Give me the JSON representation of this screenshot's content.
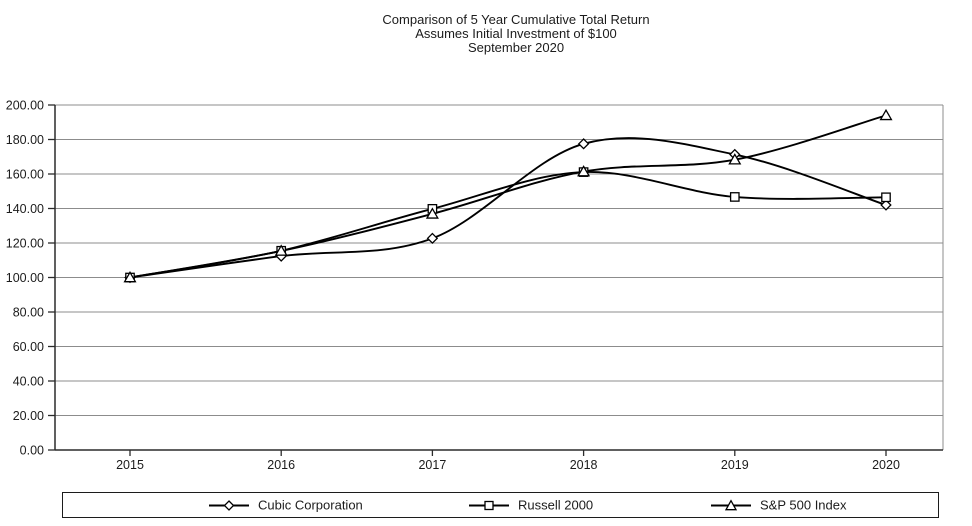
{
  "title": {
    "line1": "Comparison of 5 Year Cumulative Total Return",
    "line2": "Assumes Initial Investment of $100",
    "line3": "September 2020"
  },
  "chart_data": {
    "type": "line",
    "smoothed": true,
    "x_labels": [
      "2015",
      "2016",
      "2017",
      "2018",
      "2019",
      "2020"
    ],
    "series": [
      {
        "name": "Cubic Corporation",
        "marker": "diamond",
        "values": [
          100.0,
          112.4,
          122.7,
          177.5,
          171.3,
          142.0
        ]
      },
      {
        "name": "Russell 2000",
        "marker": "square",
        "values": [
          100.0,
          115.5,
          139.8,
          161.1,
          146.7,
          146.5
        ]
      },
      {
        "name": "S&P 500 Index",
        "marker": "triangle",
        "values": [
          100.0,
          115.4,
          136.9,
          161.4,
          168.3,
          194.0
        ]
      }
    ],
    "ylim": [
      0,
      200
    ],
    "y_tick_step": 20,
    "y_tick_labels": [
      "0.00",
      "20.00",
      "40.00",
      "60.00",
      "80.00",
      "100.00",
      "120.00",
      "140.00",
      "160.00",
      "180.00",
      "200.00"
    ],
    "grid": true,
    "legend_position": "bottom",
    "colors": {
      "line": "#000000",
      "marker_fill": "#ffffff",
      "grid": "#8c8c8c",
      "axis": "#2b2b2b",
      "text": "#1c1c1c",
      "background": "#ffffff"
    }
  }
}
